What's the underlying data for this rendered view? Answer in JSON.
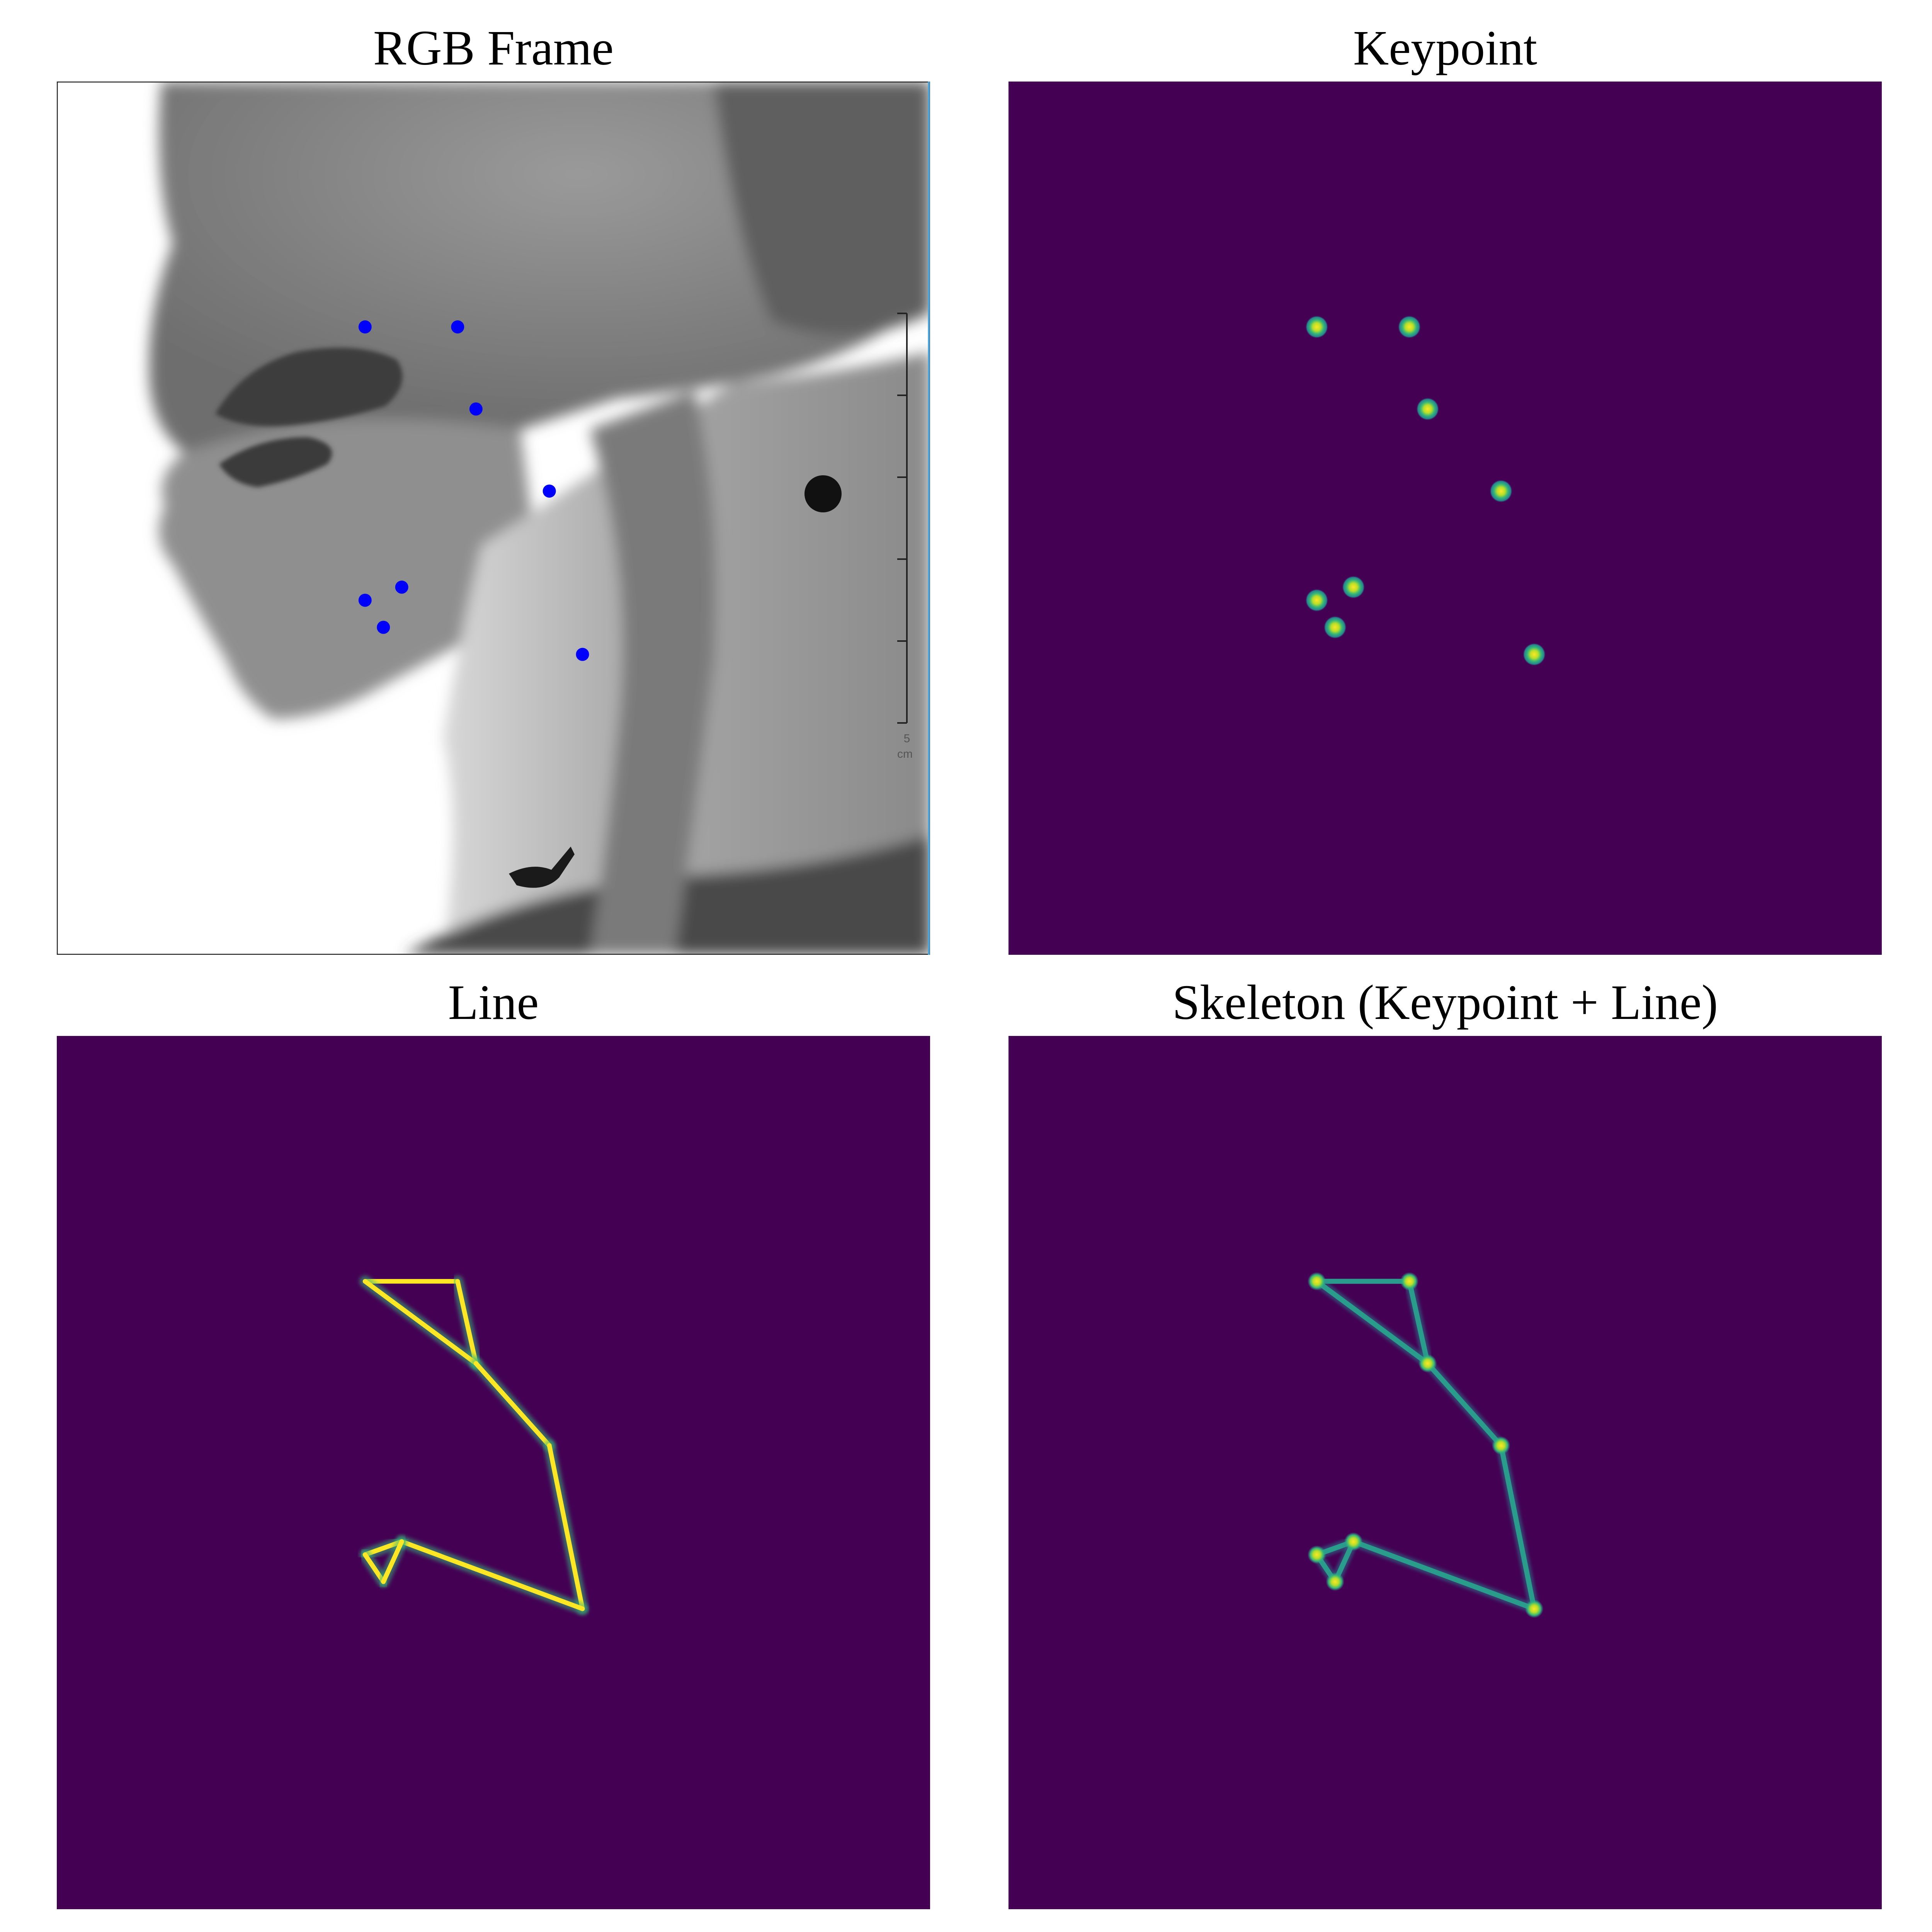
{
  "panels": [
    {
      "id": "rgb",
      "title": "RGB Frame"
    },
    {
      "id": "keypoint",
      "title": "Keypoint"
    },
    {
      "id": "line",
      "title": "Line"
    },
    {
      "id": "skeleton",
      "title": "Skeleton (Keypoint + Line)"
    }
  ],
  "scale_bar": {
    "value": "5",
    "unit": "cm"
  },
  "keypoints_normalized_image": [
    [
      0.353,
      0.281
    ],
    [
      0.459,
      0.281
    ],
    [
      0.48,
      0.375
    ],
    [
      0.564,
      0.469
    ],
    [
      0.395,
      0.579
    ],
    [
      0.353,
      0.594
    ],
    [
      0.374,
      0.625
    ],
    [
      0.602,
      0.656
    ]
  ],
  "skeleton_edges": [
    [
      0,
      1
    ],
    [
      1,
      2
    ],
    [
      2,
      0
    ],
    [
      2,
      3
    ],
    [
      3,
      7
    ],
    [
      7,
      4
    ],
    [
      4,
      5
    ],
    [
      5,
      6
    ],
    [
      6,
      4
    ]
  ],
  "colors": {
    "background": "#440154",
    "keypoint": "#fde725",
    "keypoint_mid": "#35b779",
    "line_bright": "#fde725",
    "line_skeleton": "#2a9c8c",
    "rgb_marker": "#0000ff"
  }
}
